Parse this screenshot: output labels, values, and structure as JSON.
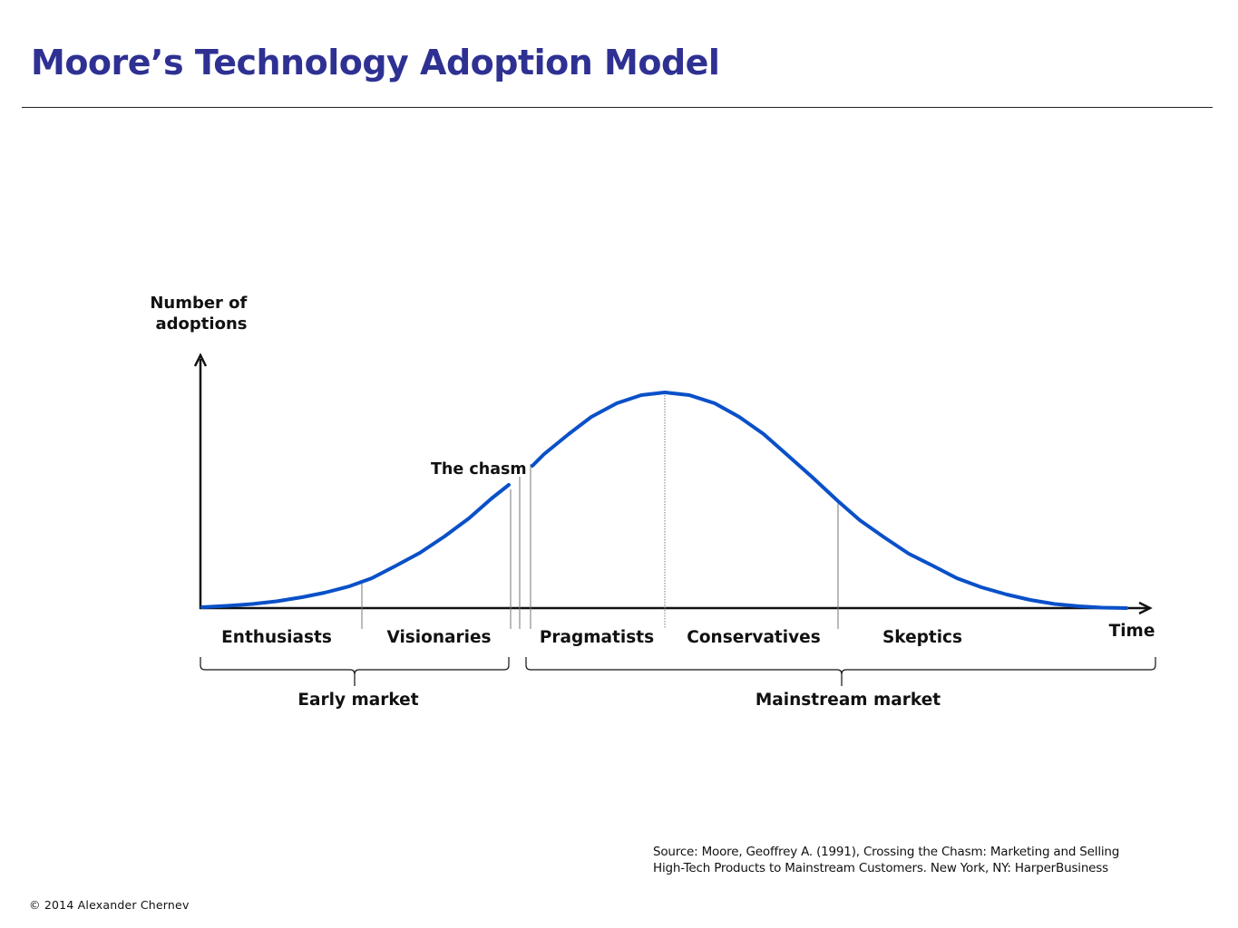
{
  "title": "Moore’s Technology Adoption Model",
  "colors": {
    "title": "#2E3192",
    "curve": "#0A50C8",
    "axis": "#111111",
    "divider": "#777777"
  },
  "diagram": {
    "y_axis_label": [
      "Number of",
      "adoptions"
    ],
    "x_axis_label": "Time",
    "chasm_label": "The chasm",
    "segments": [
      "Enthusiasts",
      "Visionaries",
      "Pragmatists",
      "Conservatives",
      "Skeptics"
    ],
    "markets": {
      "early": "Early market",
      "mainstream": "Mainstream market"
    }
  },
  "source": {
    "line1": "Source: Moore, Geoffrey A. (1991), Crossing the Chasm: Marketing and Selling",
    "line2": "High-Tech Products to Mainstream Customers. New York, NY: HarperBusiness"
  },
  "copyright": "© 2014 Alexander Chernev"
}
